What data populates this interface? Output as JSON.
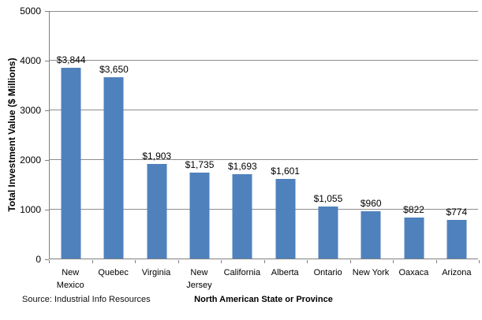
{
  "chart_data": {
    "type": "bar",
    "categories": [
      "New Mexico",
      "Quebec",
      "Virginia",
      "New Jersey",
      "California",
      "Alberta",
      "Ontario",
      "New York",
      "Oaxaca",
      "Arizona"
    ],
    "category_lines": [
      [
        "New",
        "Mexico"
      ],
      [
        "Quebec"
      ],
      [
        "Virginia"
      ],
      [
        "New",
        "Jersey"
      ],
      [
        "California"
      ],
      [
        "Alberta"
      ],
      [
        "Ontario"
      ],
      [
        "New York"
      ],
      [
        "Oaxaca"
      ],
      [
        "Arizona"
      ]
    ],
    "values": [
      3844,
      3650,
      1903,
      1735,
      1693,
      1601,
      1055,
      960,
      822,
      774
    ],
    "data_labels": [
      "$3,844",
      "$3,650",
      "$1,903",
      "$1,735",
      "$1,693",
      "$1,601",
      "$1,055",
      "$960",
      "$822",
      "$774"
    ],
    "xlabel": "North American State or Province",
    "ylabel": "Total Investment Value ($ Millions)",
    "ylim": [
      0,
      5000
    ],
    "yticks": [
      0,
      1000,
      2000,
      3000,
      4000,
      5000
    ],
    "grid": true,
    "legend": false,
    "bar_color": "#4F81BD",
    "gridline_color": "#8C8C8C",
    "axis_color": "#808080"
  },
  "source_note": "Source: Industrial Info Resources"
}
